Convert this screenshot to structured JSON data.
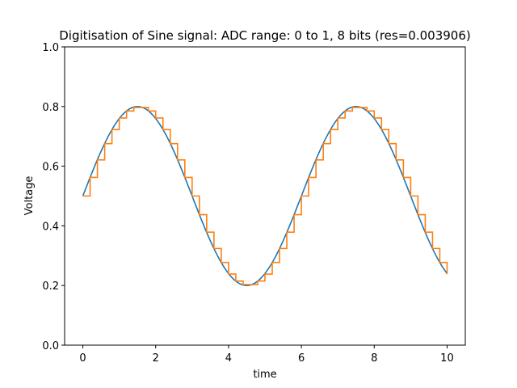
{
  "chart_data": {
    "type": "line",
    "title": "Digitisation of Sine signal: ADC range: 0 to 1, 8 bits (res=0.003906)",
    "xlabel": "time",
    "ylabel": "Voltage",
    "xlim": [
      -0.5,
      10.5
    ],
    "ylim": [
      0.0,
      1.0
    ],
    "xticks": [
      "0",
      "2",
      "4",
      "6",
      "8",
      "10"
    ],
    "xtick_values": [
      0,
      2,
      4,
      6,
      8,
      10
    ],
    "yticks": [
      "0.0",
      "0.2",
      "0.4",
      "0.6",
      "0.8",
      "1.0"
    ],
    "ytick_values": [
      0.0,
      0.2,
      0.4,
      0.6,
      0.8,
      1.0
    ],
    "grid": false,
    "signal": {
      "offset": 0.5,
      "amplitude": 0.3,
      "angular_frequency": 1.0472,
      "x_start": 0,
      "x_end": 10,
      "samples": 201
    },
    "adc": {
      "range": [
        0,
        1
      ],
      "bits": 8,
      "resolution": 0.003906,
      "sample_interval": 0.2
    },
    "series": [
      {
        "style": "analog",
        "color": "#1f77b4"
      },
      {
        "style": "step",
        "color": "#ff7f0e"
      }
    ]
  }
}
